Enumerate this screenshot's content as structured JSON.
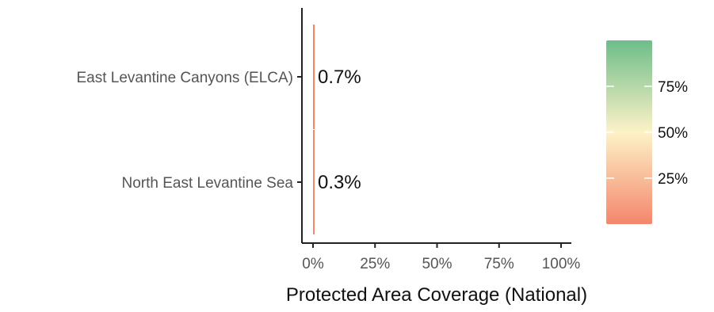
{
  "chart_data": {
    "type": "bar",
    "orientation": "horizontal",
    "categories": [
      "East Levantine Canyons (ELCA)",
      "North East Levantine Sea"
    ],
    "values": [
      0.7,
      0.3
    ],
    "data_labels": [
      "0.7%",
      "0.3%"
    ],
    "xlabel": "Protected Area Coverage (National)",
    "xlim": [
      0,
      100
    ],
    "x_ticks": [
      0,
      25,
      50,
      75,
      100
    ],
    "x_tick_labels": [
      "0%",
      "25%",
      "50%",
      "75%",
      "100%"
    ],
    "grid": false,
    "legend": {
      "type": "colorbar",
      "placement": "right",
      "range": [
        0,
        100
      ],
      "ticks": [
        25,
        50,
        75
      ],
      "tick_labels": [
        "25%",
        "50%",
        "75%"
      ],
      "colors": {
        "low": "#f4866b",
        "mid": "#fdf2c7",
        "high": "#6dbd8a"
      }
    }
  }
}
